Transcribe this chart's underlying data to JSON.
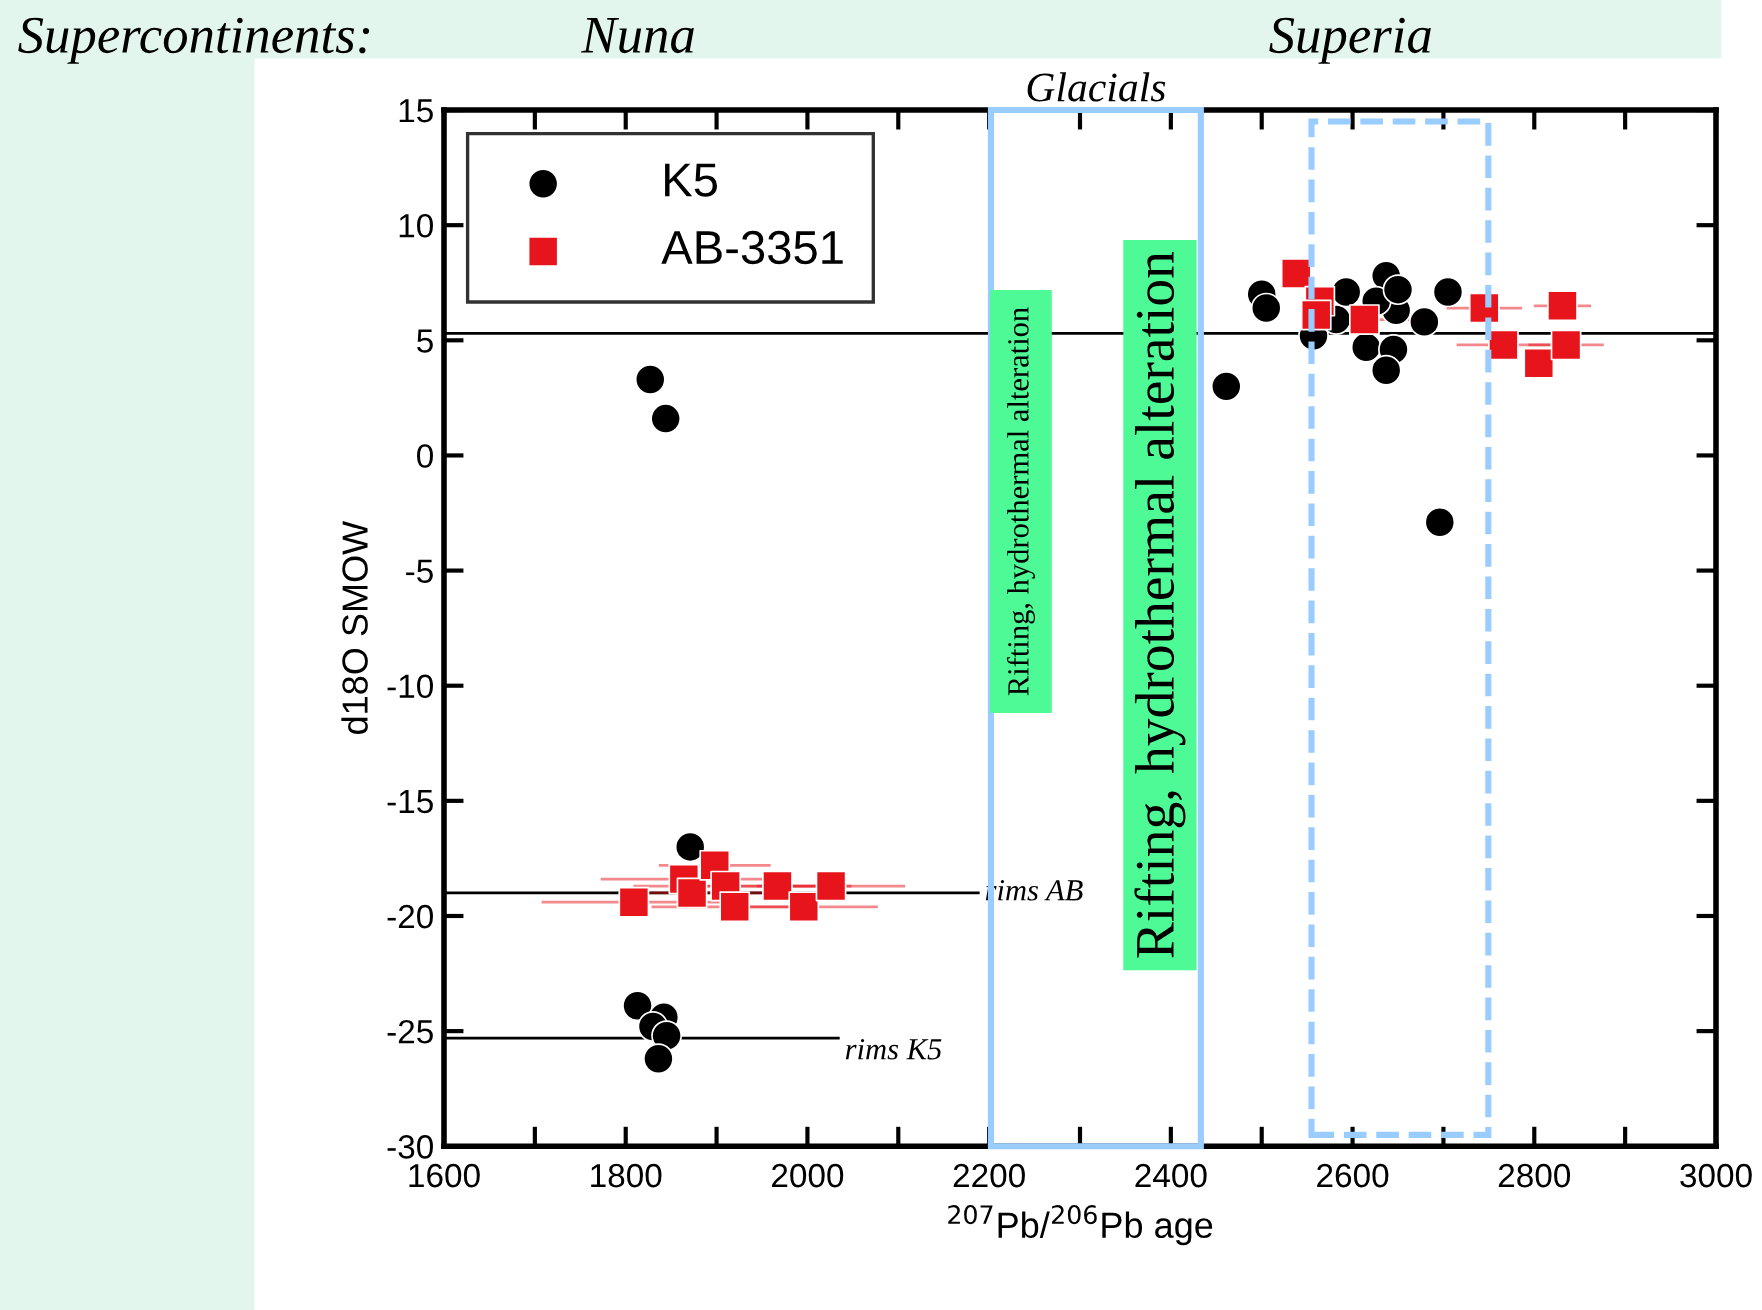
{
  "chart_data": {
    "type": "scatter",
    "xlabel": "$^{207}$Pb/$^{206}$Pb age",
    "ylabel": "d18O SMOW",
    "xlim": [
      1600,
      3000
    ],
    "ylim": [
      -30,
      15
    ],
    "xticks": [
      1600,
      {
        "value": 1700,
        "label": null
      },
      1800,
      {
        "value": 1900,
        "label": null
      },
      2000,
      {
        "value": 2100,
        "label": null
      },
      2200,
      {
        "value": 2300,
        "label": null
      },
      2400,
      {
        "value": 2500,
        "label": null
      },
      2600,
      {
        "value": 2700,
        "label": null
      },
      2800,
      {
        "value": 2900,
        "label": null
      },
      3000
    ],
    "yticks": [
      -30,
      -25,
      -20,
      -15,
      -10,
      -5,
      0,
      5,
      10,
      15
    ],
    "legend": "top left",
    "grid": false,
    "series": [
      {
        "name": "K5",
        "color": "#000000",
        "marker": "circle",
        "x": [
          1827,
          1844,
          1871,
          1813,
          1842,
          1830,
          1845,
          1836,
          2500,
          2505,
          2461,
          2557,
          2582,
          2593,
          2615,
          2637,
          2648,
          2645,
          2637,
          2626,
          2679,
          2705,
          2696,
          2650
        ],
        "values": [
          3.3,
          1.6,
          -17.0,
          -23.9,
          -24.4,
          -24.8,
          -25.2,
          -26.2,
          7.0,
          6.4,
          3.0,
          5.2,
          5.9,
          7.1,
          4.7,
          7.8,
          6.3,
          4.6,
          3.7,
          6.7,
          5.8,
          7.1,
          -2.9,
          7.2
        ]
      },
      {
        "name": "AB-3351",
        "color": "#e8141c",
        "marker": "square",
        "x": [
          1809,
          1864,
          1873,
          1898,
          1910,
          1920,
          1967,
          1996,
          2026,
          2538,
          2564,
          2560,
          2613,
          2745,
          2766,
          2805,
          2831,
          2835
        ],
        "values": [
          -19.4,
          -18.4,
          -19.0,
          -17.8,
          -18.7,
          -19.6,
          -18.7,
          -19.6,
          -18.7,
          7.9,
          6.7,
          6.1,
          5.9,
          6.4,
          4.8,
          4.0,
          6.5,
          4.8
        ],
        "xerrors": [
          100,
          90,
          80,
          60,
          100,
          90,
          80,
          80,
          80,
          null,
          null,
          null,
          60,
          40,
          50,
          null,
          30,
          40
        ]
      }
    ],
    "ref_lines": [
      {
        "axis": "y",
        "value": 5.3,
        "color": "#000000"
      },
      {
        "axis": "y",
        "value": -19.0,
        "label": "rims AB",
        "color": "#000000"
      },
      {
        "axis": "y",
        "value": -25.3,
        "label": "rims K5",
        "color": "#000000"
      }
    ],
    "annotations": [
      "Supercontinents:",
      "Nuna",
      "Superia",
      "Rifting, hydrothermal alteration",
      "Rifting, hydrothermal alteration",
      "Glacials"
    ]
  }
}
